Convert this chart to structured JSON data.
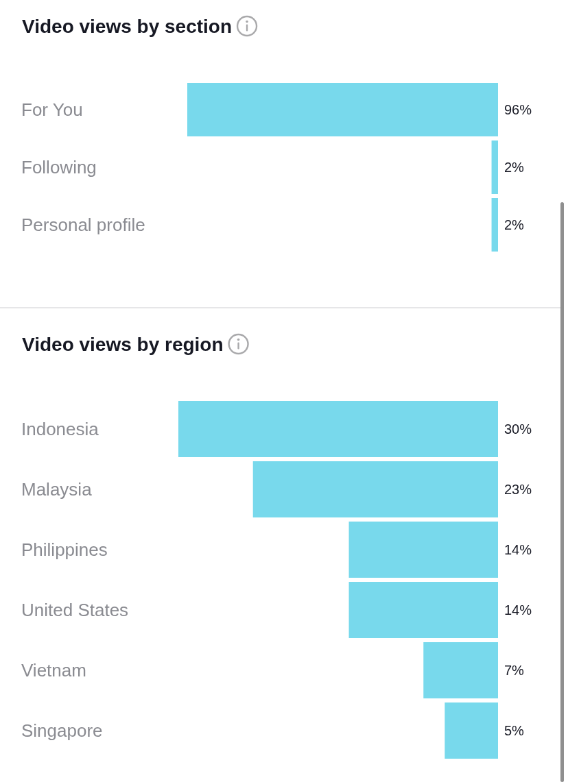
{
  "chart_data": [
    {
      "type": "bar",
      "orientation": "horizontal",
      "title": "Video views by section",
      "categories": [
        "For You",
        "Following",
        "Personal profile"
      ],
      "values": [
        96,
        2,
        2
      ],
      "value_labels": [
        "96%",
        "2%",
        "2%"
      ],
      "color": "#78d9ec"
    },
    {
      "type": "bar",
      "orientation": "horizontal",
      "title": "Video views by region",
      "categories": [
        "Indonesia",
        "Malaysia",
        "Philippines",
        "United States",
        "Vietnam",
        "Singapore"
      ],
      "values": [
        30,
        23,
        14,
        14,
        7,
        5
      ],
      "value_labels": [
        "30%",
        "23%",
        "14%",
        "14%",
        "7%",
        "5%"
      ],
      "color": "#78d9ec"
    }
  ]
}
